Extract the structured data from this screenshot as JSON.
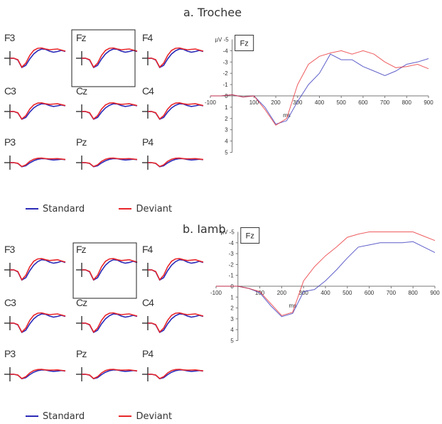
{
  "panel_a_title": "a. Trochee",
  "panel_b_title": "b. Iamb",
  "electrodes": [
    "F3",
    "Fz",
    "F4",
    "C3",
    "Cz",
    "C4",
    "P3",
    "Pz",
    "P4"
  ],
  "highlighted_electrode": "Fz",
  "legend": {
    "standard": "Standard",
    "deviant": "Deviant"
  },
  "colors": {
    "standard": "#2a2ab8",
    "deviant": "#e8262a"
  },
  "chart_data": [
    {
      "type": "line",
      "panel": "a. Trochee",
      "box_label": "Fz",
      "ylabel": "µV -5",
      "xlabel": "ms",
      "x_ticks": [
        "-100",
        "100",
        "200",
        "300",
        "400",
        "500",
        "600",
        "700",
        "800",
        "900"
      ],
      "y_ticks": [
        "-4",
        "-3",
        "-2",
        "-1",
        "0",
        "1",
        "2",
        "3",
        "4",
        "5"
      ],
      "xlim": [
        -100,
        900
      ],
      "ylim": [
        -5,
        5
      ],
      "y_inverted": true,
      "series": [
        {
          "name": "Standard",
          "x": [
            -100,
            -50,
            0,
            50,
            100,
            150,
            200,
            250,
            300,
            350,
            400,
            450,
            500,
            550,
            600,
            650,
            700,
            750,
            800,
            850,
            900
          ],
          "values": [
            0,
            0,
            -0.1,
            0.1,
            0,
            1.0,
            2.5,
            2.2,
            0.5,
            -1.0,
            -2.0,
            -3.7,
            -3.2,
            -3.2,
            -2.6,
            -2.2,
            -1.8,
            -2.2,
            -2.8,
            -3.0,
            -3.3
          ]
        },
        {
          "name": "Deviant",
          "x": [
            -100,
            -50,
            0,
            50,
            100,
            150,
            200,
            250,
            300,
            350,
            400,
            450,
            500,
            550,
            600,
            650,
            700,
            750,
            800,
            850,
            900
          ],
          "values": [
            0,
            0,
            -0.1,
            0.1,
            0,
            1.2,
            2.6,
            2.0,
            -1.0,
            -2.8,
            -3.5,
            -3.8,
            -4.0,
            -3.7,
            -4.0,
            -3.7,
            -3.0,
            -2.5,
            -2.6,
            -2.8,
            -2.4
          ]
        }
      ]
    },
    {
      "type": "line",
      "panel": "b. Iamb",
      "box_label": "Fz",
      "ylabel": "µV -5",
      "xlabel": "ms",
      "x_ticks": [
        "-100",
        "100",
        "200",
        "300",
        "400",
        "500",
        "600",
        "700",
        "800",
        "900"
      ],
      "y_ticks": [
        "-4",
        "-3",
        "-2",
        "-1",
        "0",
        "1",
        "2",
        "3",
        "4",
        "5"
      ],
      "xlim": [
        -100,
        900
      ],
      "ylim": [
        -5,
        5
      ],
      "y_inverted": true,
      "series": [
        {
          "name": "Standard",
          "x": [
            -100,
            -50,
            0,
            50,
            100,
            150,
            200,
            250,
            300,
            350,
            400,
            450,
            500,
            550,
            600,
            650,
            700,
            750,
            800,
            850,
            900
          ],
          "values": [
            0,
            0,
            0,
            0.2,
            0.6,
            1.8,
            2.8,
            2.5,
            0.5,
            0.3,
            -0.5,
            -1.5,
            -2.6,
            -3.6,
            -3.8,
            -4.0,
            -4.0,
            -4.0,
            -4.1,
            -3.6,
            -3.1
          ]
        },
        {
          "name": "Deviant",
          "x": [
            -100,
            -50,
            0,
            50,
            100,
            150,
            200,
            250,
            300,
            350,
            400,
            450,
            500,
            550,
            600,
            650,
            700,
            750,
            800,
            850,
            900
          ],
          "values": [
            0,
            0,
            0,
            0.2,
            0.5,
            1.6,
            2.7,
            2.4,
            -0.5,
            -1.8,
            -2.8,
            -3.6,
            -4.5,
            -4.8,
            -5.0,
            -5.0,
            -5.0,
            -5.0,
            -5.0,
            -4.6,
            -4.2
          ]
        }
      ]
    }
  ]
}
